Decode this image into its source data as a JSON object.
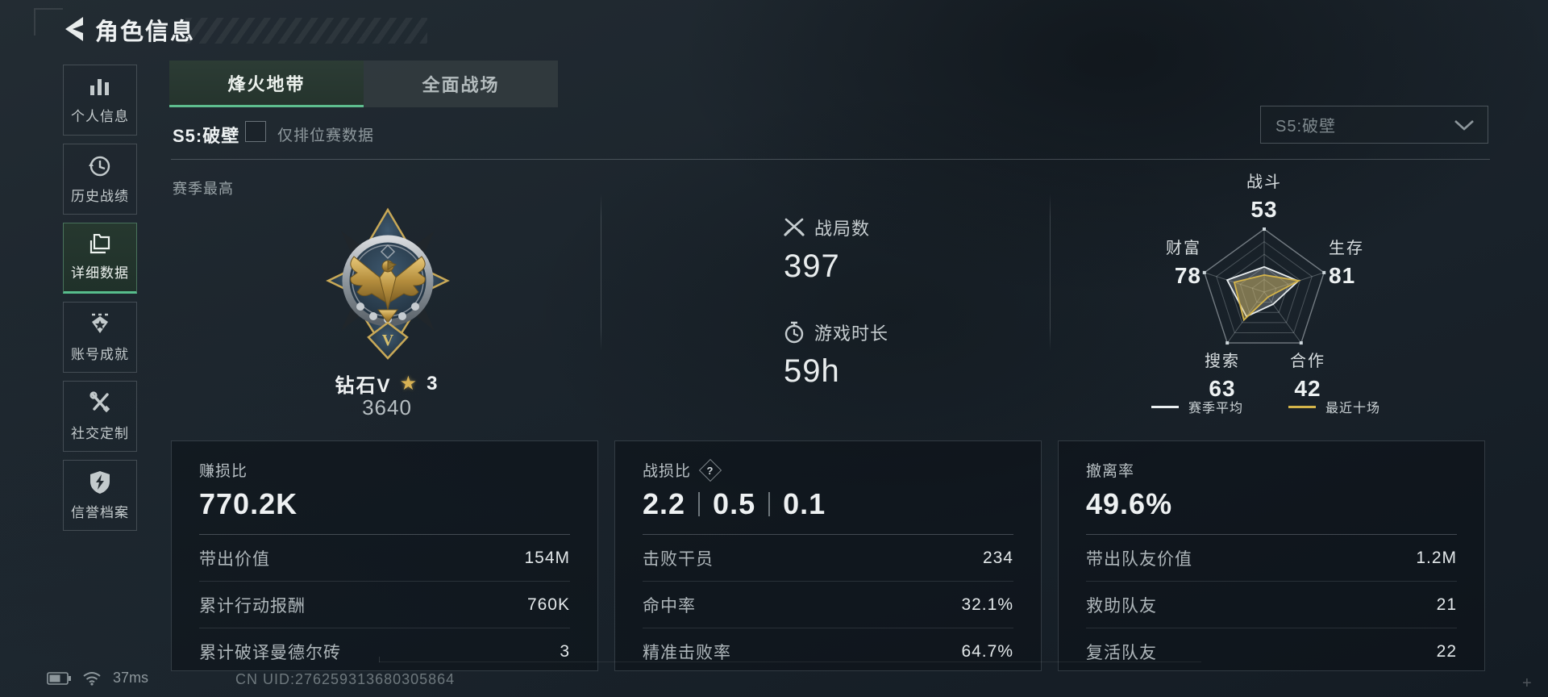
{
  "header": {
    "title": "角色信息"
  },
  "sidebar": {
    "items": [
      {
        "label": "个人信息",
        "icon": "bar-chart-icon",
        "active": false
      },
      {
        "label": "历史战绩",
        "icon": "history-clock-icon",
        "active": false
      },
      {
        "label": "详细数据",
        "icon": "folder-icon",
        "active": true
      },
      {
        "label": "账号成就",
        "icon": "achievement-badge-icon",
        "active": false
      },
      {
        "label": "社交定制",
        "icon": "tools-icon",
        "active": false
      },
      {
        "label": "信誉档案",
        "icon": "shield-bolt-icon",
        "active": false
      }
    ]
  },
  "tabs": [
    {
      "label": "烽火地带",
      "active": true
    },
    {
      "label": "全面战场",
      "active": false
    }
  ],
  "season": {
    "label": "S5:破壁",
    "checkbox_label": "仅排位赛数据",
    "checked": false,
    "dropdown_value": "S5:破壁"
  },
  "section_label": "赛季最高",
  "rank": {
    "name": "钻石V",
    "stars": "3",
    "points": "3640"
  },
  "summary": [
    {
      "icon": "crossed-swords-icon",
      "label": "战局数",
      "value": "397"
    },
    {
      "icon": "stopwatch-icon",
      "label": "游戏时长",
      "value": "59h"
    }
  ],
  "chart_data": {
    "type": "radar",
    "title": "赛季最高能力五维图",
    "max": 100,
    "grid_rings": 5,
    "axes": [
      {
        "label": "战斗",
        "value": 53
      },
      {
        "label": "生存",
        "value": 81
      },
      {
        "label": "合作",
        "value": 42
      },
      {
        "label": "搜索",
        "value": 63
      },
      {
        "label": "财富",
        "value": 78
      }
    ],
    "series": [
      {
        "name": "赛季平均",
        "color": "#e9eef0",
        "values": [
          40,
          57,
          24,
          48,
          62
        ]
      },
      {
        "name": "最近十场",
        "color": "#d4b44a",
        "values": [
          27,
          58,
          10,
          55,
          50
        ]
      }
    ],
    "legend_position": "bottom"
  },
  "cards": [
    {
      "title": "赚损比",
      "value": "770.2K",
      "rows": [
        {
          "label": "带出价值",
          "value": "154M"
        },
        {
          "label": "累计行动报酬",
          "value": "760K"
        },
        {
          "label": "累计破译曼德尔砖",
          "value": "3"
        }
      ]
    },
    {
      "title": "战损比",
      "help_icon": "?",
      "value_parts": [
        "2.2",
        "0.5",
        "0.1"
      ],
      "rows": [
        {
          "label": "击败干员",
          "value": "234"
        },
        {
          "label": "命中率",
          "value": "32.1%"
        },
        {
          "label": "精准击败率",
          "value": "64.7%"
        }
      ]
    },
    {
      "title": "撤离率",
      "value": "49.6%",
      "rows": [
        {
          "label": "带出队友价值",
          "value": "1.2M"
        },
        {
          "label": "救助队友",
          "value": "21"
        },
        {
          "label": "复活队友",
          "value": "22"
        }
      ]
    }
  ],
  "status_bar": {
    "ping": "37ms",
    "uid": "CN UID:276259313680305864"
  }
}
